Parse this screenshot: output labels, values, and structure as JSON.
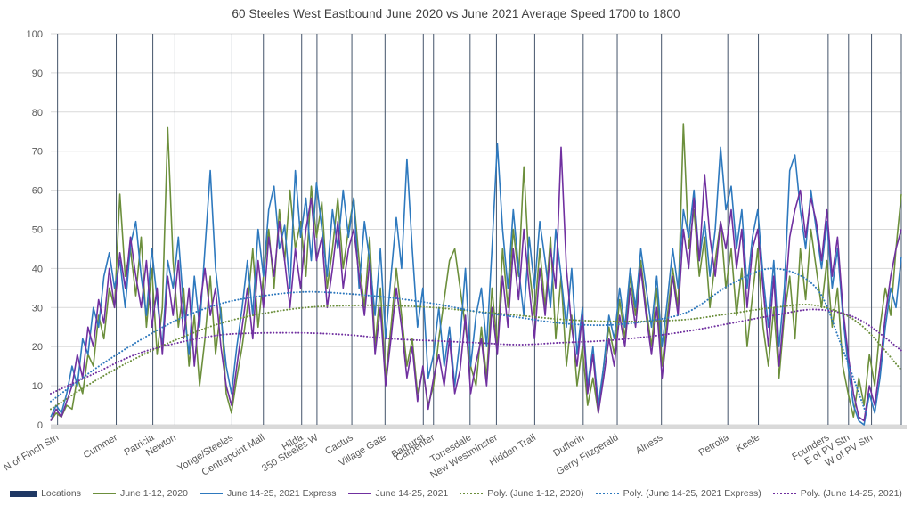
{
  "chart_data": {
    "type": "line",
    "title": "60 Steeles West Eastbound June 2020 vs June 2021 Average Speed 1700 to 1800",
    "xlabel": "",
    "ylabel": "",
    "ylim": [
      0,
      100
    ],
    "y_ticks": [
      0,
      10,
      20,
      30,
      40,
      50,
      60,
      70,
      80,
      90,
      100
    ],
    "grid": "horizontal gray lines every 10; vertical navy lines at each location",
    "legend_position": "bottom",
    "locations": [
      {
        "label": "N of Finch Stn",
        "x": 0.008
      },
      {
        "label": "Cummer",
        "x": 0.077
      },
      {
        "label": "Patricia",
        "x": 0.12
      },
      {
        "label": "Newton",
        "x": 0.146
      },
      {
        "label": "Yonge/Steeles",
        "x": 0.213
      },
      {
        "label": "Centrepoint Mall",
        "x": 0.25
      },
      {
        "label": "Hilda",
        "x": 0.295
      },
      {
        "label": "350 Steeles W",
        "x": 0.313
      },
      {
        "label": "Cactus",
        "x": 0.354
      },
      {
        "label": "Village Gate",
        "x": 0.393
      },
      {
        "label": "Bathurst",
        "x": 0.438
      },
      {
        "label": "Carpenter",
        "x": 0.45
      },
      {
        "label": "Torresdale",
        "x": 0.493
      },
      {
        "label": "New Westminster",
        "x": 0.524
      },
      {
        "label": "Hidden Trail",
        "x": 0.569
      },
      {
        "label": "Dufferin",
        "x": 0.626
      },
      {
        "label": "Gerry Fitzgerald",
        "x": 0.666
      },
      {
        "label": "Alness",
        "x": 0.718
      },
      {
        "label": "Petrolia",
        "x": 0.796
      },
      {
        "label": "Keele",
        "x": 0.832
      },
      {
        "label": "Founders",
        "x": 0.914
      },
      {
        "label": "E of PV Stn",
        "x": 0.938
      },
      {
        "label": "W of PV Stn",
        "x": 0.965
      }
    ],
    "right_edge_line": true,
    "series": [
      {
        "name": "June 1-12, 2020",
        "color": "#6C8F3C",
        "style": "solid",
        "values": [
          1,
          3,
          2,
          5,
          4,
          12,
          8,
          18,
          15,
          28,
          22,
          35,
          30,
          59,
          38,
          45,
          33,
          48,
          25,
          40,
          18,
          30,
          76,
          42,
          25,
          35,
          15,
          28,
          10,
          22,
          38,
          18,
          30,
          8,
          3,
          12,
          20,
          30,
          45,
          25,
          38,
          50,
          35,
          55,
          42,
          60,
          45,
          52,
          38,
          61,
          48,
          57,
          35,
          45,
          58,
          40,
          50,
          58,
          42,
          30,
          48,
          20,
          35,
          12,
          25,
          40,
          28,
          15,
          22,
          8,
          14,
          5,
          10,
          22,
          32,
          42,
          45,
          35,
          25,
          15,
          10,
          25,
          12,
          35,
          20,
          45,
          30,
          50,
          38,
          66,
          40,
          28,
          45,
          30,
          48,
          22,
          38,
          15,
          28,
          10,
          20,
          5,
          12,
          3,
          15,
          25,
          18,
          32,
          22,
          38,
          28,
          42,
          30,
          20,
          35,
          15,
          28,
          40,
          30,
          77,
          45,
          55,
          38,
          48,
          30,
          42,
          52,
          35,
          45,
          28,
          40,
          20,
          33,
          45,
          25,
          15,
          30,
          12,
          28,
          38,
          22,
          45,
          32,
          50,
          40,
          30,
          42,
          25,
          35,
          15,
          8,
          2,
          12,
          5,
          18,
          10,
          25,
          35,
          28,
          45,
          59
        ]
      },
      {
        "name": "June 14-25, 2021 Express",
        "color": "#2E79BE",
        "style": "solid",
        "values": [
          2,
          5,
          3,
          8,
          15,
          10,
          22,
          18,
          30,
          25,
          38,
          44,
          35,
          42,
          30,
          46,
          52,
          38,
          28,
          45,
          32,
          20,
          42,
          35,
          48,
          30,
          18,
          38,
          25,
          45,
          65,
          40,
          28,
          15,
          8,
          20,
          30,
          42,
          28,
          50,
          38,
          55,
          61,
          45,
          51,
          35,
          65,
          48,
          58,
          42,
          62,
          50,
          38,
          55,
          45,
          60,
          48,
          58,
          35,
          52,
          42,
          28,
          45,
          22,
          38,
          53,
          40,
          68,
          45,
          25,
          35,
          12,
          18,
          30,
          15,
          25,
          10,
          22,
          40,
          15,
          28,
          35,
          20,
          45,
          72,
          50,
          35,
          55,
          40,
          28,
          48,
          35,
          52,
          42,
          30,
          50,
          38,
          25,
          40,
          18,
          30,
          10,
          20,
          5,
          15,
          28,
          22,
          35,
          25,
          40,
          30,
          45,
          35,
          25,
          38,
          20,
          32,
          45,
          35,
          55,
          48,
          60,
          42,
          52,
          38,
          50,
          71,
          55,
          61,
          45,
          55,
          35,
          48,
          55,
          38,
          25,
          42,
          20,
          35,
          65,
          69,
          55,
          45,
          60,
          50,
          40,
          52,
          35,
          45,
          28,
          15,
          5,
          1,
          0,
          8,
          3,
          12,
          25,
          35,
          30,
          43
        ]
      },
      {
        "name": "June 14-25, 2021",
        "color": "#7030A0",
        "style": "solid",
        "values": [
          1,
          4,
          2,
          6,
          10,
          18,
          12,
          25,
          20,
          32,
          26,
          40,
          30,
          44,
          35,
          48,
          38,
          30,
          42,
          25,
          35,
          18,
          38,
          28,
          42,
          22,
          35,
          15,
          30,
          40,
          28,
          35,
          20,
          10,
          5,
          15,
          25,
          35,
          22,
          42,
          30,
          48,
          38,
          52,
          42,
          30,
          45,
          35,
          50,
          58,
          42,
          48,
          30,
          40,
          52,
          35,
          45,
          50,
          38,
          28,
          42,
          18,
          30,
          10,
          22,
          35,
          25,
          12,
          20,
          6,
          15,
          4,
          12,
          18,
          10,
          22,
          8,
          14,
          28,
          8,
          16,
          22,
          10,
          30,
          18,
          38,
          25,
          45,
          32,
          50,
          35,
          22,
          40,
          28,
          45,
          35,
          71,
          40,
          25,
          15,
          28,
          8,
          18,
          3,
          12,
          22,
          15,
          28,
          20,
          35,
          25,
          40,
          28,
          18,
          30,
          12,
          25,
          38,
          28,
          50,
          40,
          58,
          42,
          64,
          48,
          38,
          52,
          45,
          55,
          40,
          50,
          30,
          45,
          50,
          35,
          20,
          38,
          15,
          30,
          48,
          55,
          60,
          48,
          58,
          52,
          42,
          55,
          38,
          48,
          30,
          18,
          8,
          2,
          1,
          10,
          5,
          15,
          28,
          38,
          45,
          50
        ]
      },
      {
        "name": "Poly. (June 1-12, 2020)",
        "color": "#6C8F3C",
        "style": "dotted",
        "x": [
          0,
          0.05,
          0.1,
          0.15,
          0.2,
          0.25,
          0.3,
          0.35,
          0.4,
          0.45,
          0.5,
          0.55,
          0.6,
          0.65,
          0.7,
          0.75,
          0.8,
          0.85,
          0.9,
          0.95,
          1.0
        ],
        "values": [
          4,
          11,
          17,
          22,
          26,
          28.5,
          30,
          30.5,
          30.5,
          30,
          29,
          28,
          27,
          26.5,
          26.5,
          27,
          28.5,
          30,
          30.5,
          26,
          14
        ]
      },
      {
        "name": "Poly. (June 14-25, 2021 Express)",
        "color": "#2E79BE",
        "style": "dotted",
        "x": [
          0,
          0.05,
          0.1,
          0.15,
          0.2,
          0.25,
          0.3,
          0.35,
          0.4,
          0.45,
          0.5,
          0.55,
          0.6,
          0.65,
          0.7,
          0.75,
          0.8,
          0.85,
          0.9,
          0.93,
          0.96
        ],
        "values": [
          6,
          14,
          21,
          27,
          31,
          33,
          34,
          33.5,
          32.5,
          31,
          29,
          27.5,
          26,
          25.5,
          26.5,
          29,
          36,
          40,
          35,
          20,
          2
        ]
      },
      {
        "name": "Poly. (June 14-25, 2021)",
        "color": "#7030A0",
        "style": "dotted",
        "x": [
          0,
          0.05,
          0.1,
          0.15,
          0.2,
          0.25,
          0.3,
          0.35,
          0.4,
          0.45,
          0.5,
          0.55,
          0.6,
          0.65,
          0.7,
          0.75,
          0.8,
          0.85,
          0.9,
          0.95,
          1.0
        ],
        "values": [
          8,
          13,
          18,
          21,
          23,
          23.5,
          23.5,
          23,
          22,
          21.5,
          21,
          20.5,
          21,
          21.5,
          22.5,
          24,
          26,
          28,
          29.5,
          27,
          19
        ]
      }
    ]
  },
  "legend": {
    "items": [
      {
        "label": "Locations",
        "swatch": "bar",
        "color": "#1F3864"
      },
      {
        "label": "June 1-12, 2020",
        "swatch": "line",
        "color": "#6C8F3C"
      },
      {
        "label": "June 14-25, 2021 Express",
        "swatch": "line",
        "color": "#2E79BE"
      },
      {
        "label": "June 14-25, 2021",
        "swatch": "line",
        "color": "#7030A0"
      },
      {
        "label": "Poly. (June 1-12, 2020)",
        "swatch": "dotted",
        "color": "#6C8F3C"
      },
      {
        "label": "Poly. (June 14-25, 2021 Express)",
        "swatch": "dotted",
        "color": "#2E79BE"
      },
      {
        "label": "Poly. (June 14-25, 2021)",
        "swatch": "dotted",
        "color": "#7030A0"
      }
    ]
  },
  "colors": {
    "title_text": "#404040",
    "axis_text": "#595959",
    "h_gridline": "#D9D9D9",
    "location_line": "#44546A",
    "locations_swatch": "#1F3864",
    "axis_band": "#D9D9D9",
    "background": "#FFFFFF"
  }
}
